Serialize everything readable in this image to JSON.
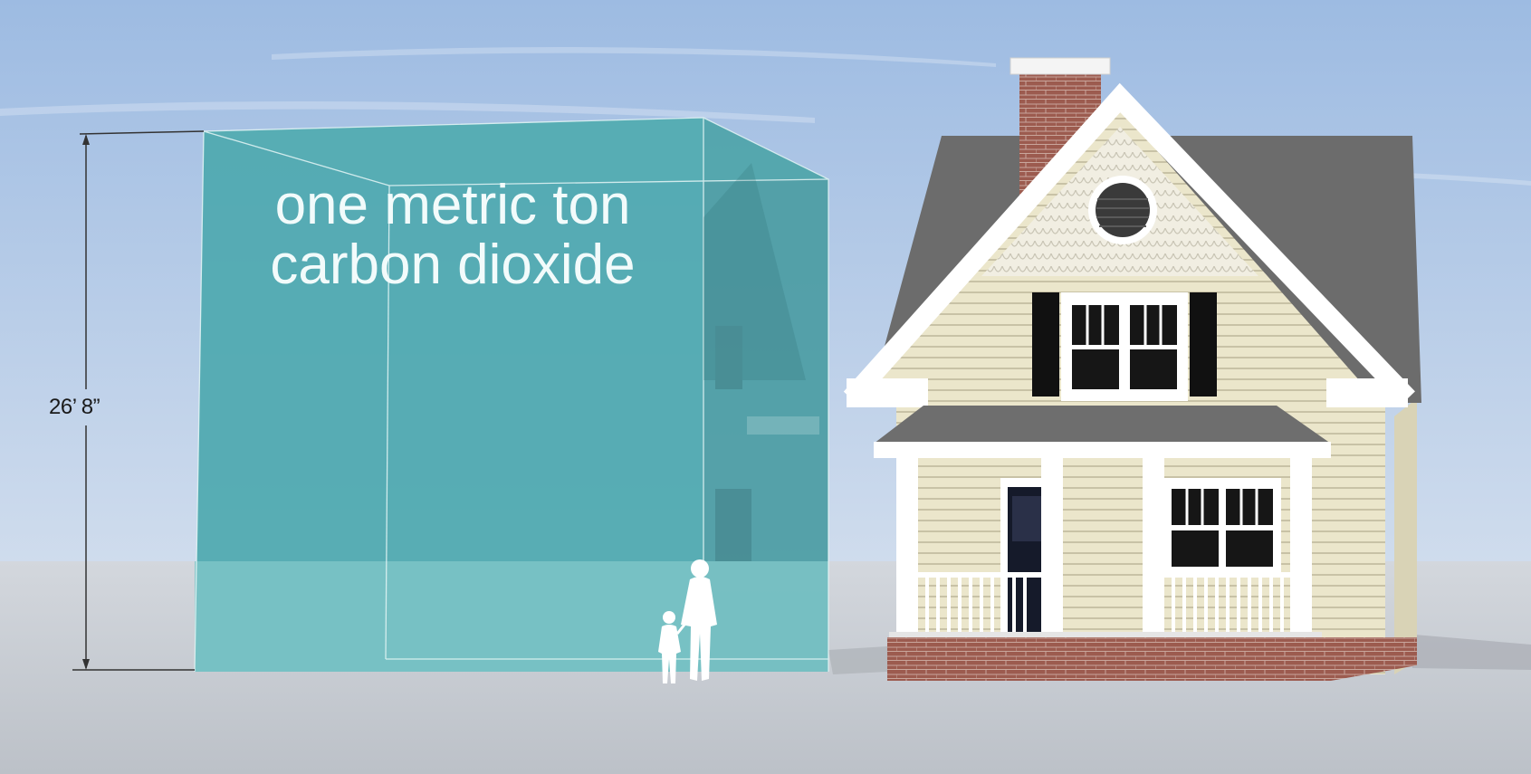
{
  "cube": {
    "line1": "one metric ton",
    "line2": "carbon dioxide",
    "height_label": "26’ 8”"
  },
  "colors": {
    "sky_top": "#9fbde3",
    "sky_bottom": "#c9daef",
    "ground": "#c7ccd3",
    "cube_front": "#4fa9af",
    "cube_side": "#4a9aa1",
    "roof": "#6a6a6a",
    "siding": "#e9e4c8",
    "brick": "#9b5a4e",
    "trim": "#ffffff"
  }
}
